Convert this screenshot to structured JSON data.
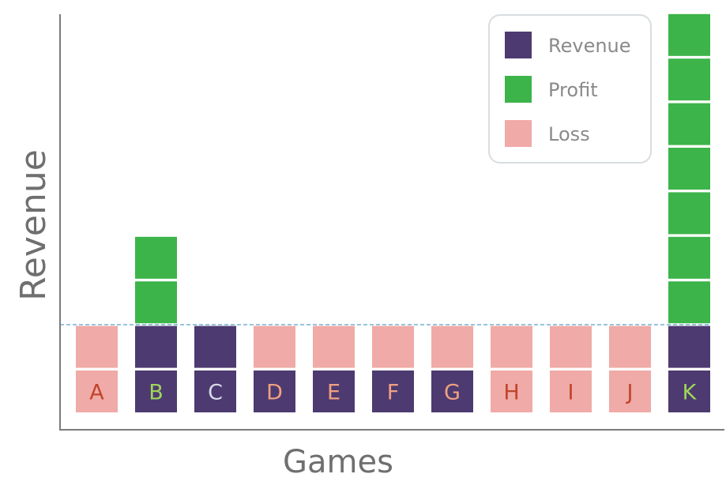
{
  "chart_data": {
    "type": "bar",
    "title": "",
    "xlabel": "Games",
    "ylabel": "Revenue",
    "categories": [
      "A",
      "B",
      "C",
      "D",
      "E",
      "F",
      "G",
      "H",
      "I",
      "J",
      "K"
    ],
    "units": "blocks",
    "columns": [
      {
        "game": "A",
        "blocks": [
          "Loss",
          "Loss"
        ],
        "label_color": "#c0452a"
      },
      {
        "game": "B",
        "blocks": [
          "Revenue",
          "Revenue",
          "Profit",
          "Profit"
        ],
        "label_color": "#9fd65a"
      },
      {
        "game": "C",
        "blocks": [
          "Revenue",
          "Revenue"
        ],
        "label_color": "#d8d8e8"
      },
      {
        "game": "D",
        "blocks": [
          "Revenue",
          "Loss"
        ],
        "label_color": "#f0a080"
      },
      {
        "game": "E",
        "blocks": [
          "Revenue",
          "Loss"
        ],
        "label_color": "#f0a080"
      },
      {
        "game": "F",
        "blocks": [
          "Revenue",
          "Loss"
        ],
        "label_color": "#f0a080"
      },
      {
        "game": "G",
        "blocks": [
          "Revenue",
          "Loss"
        ],
        "label_color": "#f0a080"
      },
      {
        "game": "H",
        "blocks": [
          "Loss",
          "Loss"
        ],
        "label_color": "#c0452a"
      },
      {
        "game": "I",
        "blocks": [
          "Loss",
          "Loss"
        ],
        "label_color": "#c0452a"
      },
      {
        "game": "J",
        "blocks": [
          "Loss",
          "Loss"
        ],
        "label_color": "#c0452a"
      },
      {
        "game": "K",
        "blocks": [
          "Revenue",
          "Revenue",
          "Profit",
          "Profit",
          "Profit",
          "Profit",
          "Profit",
          "Profit",
          "Profit"
        ],
        "label_color": "#9fd65a"
      }
    ],
    "series": [
      {
        "name": "Revenue",
        "values": [
          0,
          2,
          2,
          1,
          1,
          1,
          1,
          0,
          0,
          0,
          2
        ]
      },
      {
        "name": "Profit",
        "values": [
          0,
          2,
          0,
          0,
          0,
          0,
          0,
          0,
          0,
          0,
          7
        ]
      },
      {
        "name": "Loss",
        "values": [
          2,
          0,
          0,
          1,
          1,
          1,
          1,
          2,
          2,
          2,
          0
        ]
      }
    ],
    "break_even_level": 2,
    "grid": false,
    "legend": {
      "position": "top-right",
      "entries": [
        {
          "name": "Revenue",
          "color": "#4d3a70"
        },
        {
          "name": "Profit",
          "color": "#3cb44a"
        },
        {
          "name": "Loss",
          "color": "#f0aaa7"
        }
      ]
    }
  },
  "colors": {
    "Revenue": "#4d3a70",
    "Profit": "#3cb44a",
    "Loss": "#f0aaa7",
    "axis": "#7a7a7a",
    "baseline_dash": "#5aa0c8"
  }
}
